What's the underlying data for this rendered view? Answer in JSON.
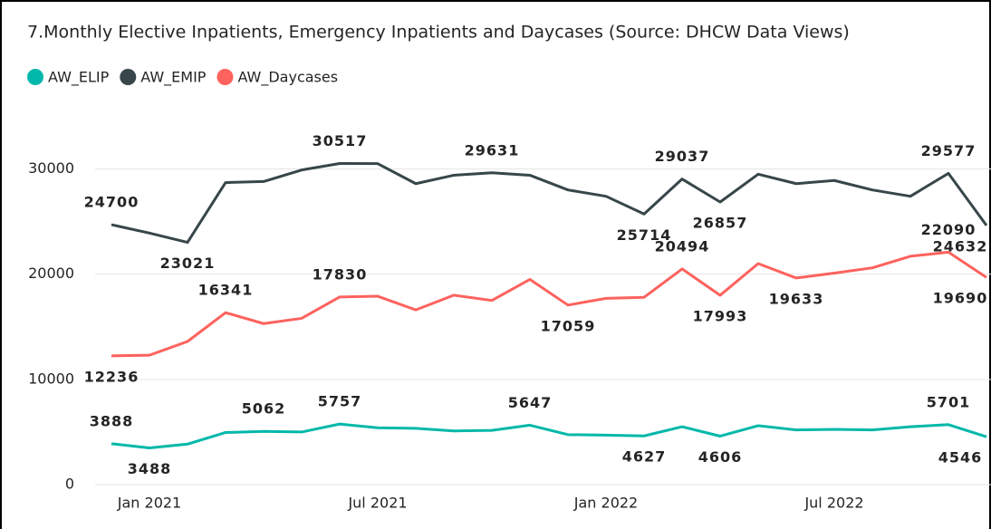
{
  "chart_data": {
    "type": "line",
    "title": "7.Monthly Elective Inpatients, Emergency Inpatients and Daycases (Source: DHCW Data Views)",
    "categories": [
      null,
      "Jan 2021",
      null,
      null,
      null,
      null,
      null,
      "Jul 2021",
      null,
      null,
      null,
      null,
      null,
      "Jan 2022",
      null,
      null,
      null,
      null,
      null,
      "Jul 2022",
      null,
      null,
      null,
      null
    ],
    "series": [
      {
        "name": "AW_ELIP",
        "color": "#01b8aa",
        "values": [
          3888,
          3488,
          3850,
          4950,
          5062,
          5000,
          5757,
          5400,
          5350,
          5100,
          5150,
          5647,
          4750,
          4700,
          4627,
          5500,
          4606,
          5600,
          5200,
          5250,
          5200,
          5500,
          5701,
          4546
        ],
        "value_labels": [
          "3888",
          "3488",
          null,
          null,
          "5062",
          null,
          "5757",
          null,
          null,
          null,
          null,
          "5647",
          null,
          null,
          "4627",
          null,
          "4606",
          null,
          null,
          null,
          null,
          null,
          "5701",
          "4546"
        ]
      },
      {
        "name": "AW_EMIP",
        "color": "#374649",
        "values": [
          24700,
          23900,
          23021,
          28700,
          28800,
          29900,
          30517,
          30500,
          28600,
          29400,
          29631,
          29400,
          28000,
          27400,
          25714,
          29037,
          26857,
          29500,
          28600,
          28900,
          28000,
          27400,
          29577,
          24632
        ],
        "value_labels": [
          "24700",
          null,
          "23021",
          null,
          null,
          null,
          "30517",
          null,
          null,
          null,
          "29631",
          null,
          null,
          null,
          "25714",
          "29037",
          "26857",
          null,
          null,
          null,
          null,
          null,
          "29577",
          "24632"
        ]
      },
      {
        "name": "AW_Daycases",
        "color": "#fd625e",
        "values": [
          12236,
          12300,
          13600,
          16341,
          15300,
          15800,
          17830,
          17900,
          16600,
          18000,
          17500,
          19500,
          17059,
          17700,
          17800,
          20494,
          17993,
          21000,
          19633,
          20100,
          20600,
          21700,
          22090,
          19690
        ],
        "value_labels": [
          "12236",
          null,
          null,
          "16341",
          null,
          null,
          "17830",
          null,
          null,
          null,
          null,
          null,
          "17059",
          null,
          null,
          "20494",
          "17993",
          null,
          "19633",
          null,
          null,
          null,
          "22090",
          "19690"
        ]
      }
    ],
    "ylim": [
      0,
      34000
    ],
    "yticks": [
      0,
      10000,
      20000,
      30000
    ],
    "grid": true
  }
}
